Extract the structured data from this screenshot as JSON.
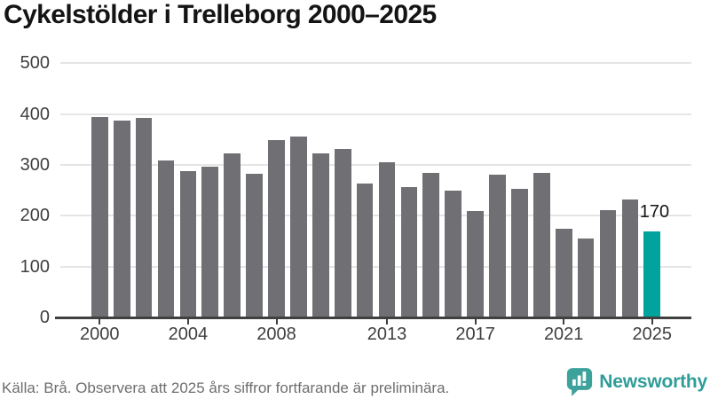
{
  "title": "Cykelstölder i Trelleborg 2000–2025",
  "chart_data": {
    "type": "bar",
    "title": "Cykelstölder i Trelleborg 2000–2025",
    "x": [
      2000,
      2001,
      2002,
      2003,
      2004,
      2005,
      2006,
      2007,
      2008,
      2009,
      2010,
      2011,
      2012,
      2013,
      2014,
      2015,
      2016,
      2017,
      2018,
      2019,
      2020,
      2021,
      2022,
      2023,
      2024,
      2025
    ],
    "values": [
      394,
      387,
      392,
      308,
      287,
      296,
      322,
      282,
      348,
      355,
      322,
      331,
      264,
      306,
      256,
      285,
      249,
      210,
      281,
      253,
      284,
      175,
      156,
      211,
      232,
      170
    ],
    "highlight_year": 2025,
    "highlight_label": "170",
    "xlabel": "",
    "ylabel": "",
    "ylim": [
      0,
      500
    ],
    "yticks": [
      0,
      100,
      200,
      300,
      400,
      500
    ],
    "xticks": [
      2000,
      2004,
      2008,
      2013,
      2017,
      2021,
      2025
    ],
    "grid": "horizontal",
    "legend": "none",
    "bar_color": "#6f6f74",
    "highlight_color": "#00a49c"
  },
  "footer": {
    "source_note": "Källa: Brå. Observera att 2025 års siffror fortfarande är preliminära."
  },
  "logo": {
    "text": "Newsworthy",
    "icon": "newsworthy-bar-chart-speech-bubble-icon",
    "text_color": "#2f9d98",
    "icon_color": "#3da29c"
  }
}
